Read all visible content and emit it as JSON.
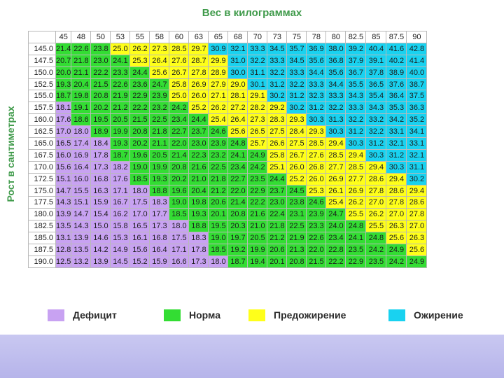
{
  "titles": {
    "top": "Вес в килограммах",
    "side": "Рост в сантиметрах"
  },
  "colors": {
    "deficit": "#c8a2f2",
    "norm": "#33dd33",
    "pre": "#ffff1a",
    "obese": "#19d2f0"
  },
  "legend": [
    {
      "label": "Дефицит",
      "color": "#c8a2f2"
    },
    {
      "label": "Норма",
      "color": "#33dd33"
    },
    {
      "label": "Предожирение",
      "color": "#ffff1a"
    },
    {
      "label": "Ожирение",
      "color": "#19d2f0"
    }
  ],
  "chart_data": {
    "type": "heatmap",
    "title": "Вес в килограммах",
    "xlabel": "Вес в килограммах",
    "ylabel": "Рост в сантиметрах",
    "x": [
      "45",
      "48",
      "50",
      "53",
      "55",
      "58",
      "60",
      "63",
      "65",
      "68",
      "70",
      "73",
      "75",
      "78",
      "80",
      "82.5",
      "85",
      "87.5",
      "90"
    ],
    "y": [
      "145.0",
      "147.5",
      "150.0",
      "152.5",
      "155.0",
      "157.5",
      "160.0",
      "162.5",
      "165.0",
      "167.5",
      "170.0",
      "172.5",
      "175.0",
      "177.5",
      "180.0",
      "182.5",
      "185.0",
      "187.5",
      "190.0"
    ],
    "values": [
      [
        "21.4",
        "22.6",
        "23.8",
        "25.0",
        "26.2",
        "27.3",
        "28.5",
        "29.7",
        "30.9",
        "32.1",
        "33.3",
        "34.5",
        "35.7",
        "36.9",
        "38.0",
        "39.2",
        "40.4",
        "41.6",
        "42.8"
      ],
      [
        "20.7",
        "21.8",
        "23.0",
        "24.1",
        "25.3",
        "26.4",
        "27.6",
        "28.7",
        "29.9",
        "31.0",
        "32.2",
        "33.3",
        "34.5",
        "35.6",
        "36.8",
        "37.9",
        "39.1",
        "40.2",
        "41.4"
      ],
      [
        "20.0",
        "21.1",
        "22.2",
        "23.3",
        "24.4",
        "25.6",
        "26.7",
        "27.8",
        "28.9",
        "30.0",
        "31.1",
        "32.2",
        "33.3",
        "34.4",
        "35.6",
        "36.7",
        "37.8",
        "38.9",
        "40.0"
      ],
      [
        "19.3",
        "20.4",
        "21.5",
        "22.6",
        "23.6",
        "24.7",
        "25.8",
        "26.9",
        "27.9",
        "29.0",
        "30.1",
        "31.2",
        "32.2",
        "33.3",
        "34.4",
        "35.5",
        "36.5",
        "37.6",
        "38.7"
      ],
      [
        "18.7",
        "19.8",
        "20.8",
        "21.9",
        "22.9",
        "23.9",
        "25.0",
        "26.0",
        "27.1",
        "28.1",
        "29.1",
        "30.2",
        "31.2",
        "32.3",
        "33.3",
        "34.3",
        "35.4",
        "36.4",
        "37.5"
      ],
      [
        "18.1",
        "19.1",
        "20.2",
        "21.2",
        "22.2",
        "23.2",
        "24.2",
        "25.2",
        "26.2",
        "27.2",
        "28.2",
        "29.2",
        "30.2",
        "31.2",
        "32.2",
        "33.3",
        "34.3",
        "35.3",
        "36.3"
      ],
      [
        "17.6",
        "18.6",
        "19.5",
        "20.5",
        "21.5",
        "22.5",
        "23.4",
        "24.4",
        "25.4",
        "26.4",
        "27.3",
        "28.3",
        "29.3",
        "30.3",
        "31.3",
        "32.2",
        "33.2",
        "34.2",
        "35.2"
      ],
      [
        "17.0",
        "18.0",
        "18.9",
        "19.9",
        "20.8",
        "21.8",
        "22.7",
        "23.7",
        "24.6",
        "25.6",
        "26.5",
        "27.5",
        "28.4",
        "29.3",
        "30.3",
        "31.2",
        "32.2",
        "33.1",
        "34.1"
      ],
      [
        "16.5",
        "17.4",
        "18.4",
        "19.3",
        "20.2",
        "21.1",
        "22.0",
        "23.0",
        "23.9",
        "24.8",
        "25.7",
        "26.6",
        "27.5",
        "28.5",
        "29.4",
        "30.3",
        "31.2",
        "32.1",
        "33.1"
      ],
      [
        "16.0",
        "16.9",
        "17.8",
        "18.7",
        "19.6",
        "20.5",
        "21.4",
        "22.3",
        "23.2",
        "24.1",
        "24.9",
        "25.8",
        "26.7",
        "27.6",
        "28.5",
        "29.4",
        "30.3",
        "31.2",
        "32.1"
      ],
      [
        "15.6",
        "16.4",
        "17.3",
        "18.2",
        "19.0",
        "19.9",
        "20.8",
        "21.6",
        "22.5",
        "23.4",
        "24.2",
        "25.1",
        "26.0",
        "26.8",
        "27.7",
        "28.5",
        "29.4",
        "30.3",
        "31.1"
      ],
      [
        "15.1",
        "16.0",
        "16.8",
        "17.6",
        "18.5",
        "19.3",
        "20.2",
        "21.0",
        "21.8",
        "22.7",
        "23.5",
        "24.4",
        "25.2",
        "26.0",
        "26.9",
        "27.7",
        "28.6",
        "29.4",
        "30.2"
      ],
      [
        "14.7",
        "15.5",
        "16.3",
        "17.1",
        "18.0",
        "18.8",
        "19.6",
        "20.4",
        "21.2",
        "22.0",
        "22.9",
        "23.7",
        "24.5",
        "25.3",
        "26.1",
        "26.9",
        "27.8",
        "28.6",
        "29.4"
      ],
      [
        "14.3",
        "15.1",
        "15.9",
        "16.7",
        "17.5",
        "18.3",
        "19.0",
        "19.8",
        "20.6",
        "21.4",
        "22.2",
        "23.0",
        "23.8",
        "24.6",
        "25.4",
        "26.2",
        "27.0",
        "27.8",
        "28.6"
      ],
      [
        "13.9",
        "14.7",
        "15.4",
        "16.2",
        "17.0",
        "17.7",
        "18.5",
        "19.3",
        "20.1",
        "20.8",
        "21.6",
        "22.4",
        "23.1",
        "23.9",
        "24.7",
        "25.5",
        "26.2",
        "27.0",
        "27.8"
      ],
      [
        "13.5",
        "14.3",
        "15.0",
        "15.8",
        "16.5",
        "17.3",
        "18.0",
        "18.8",
        "19.5",
        "20.3",
        "21.0",
        "21.8",
        "22.5",
        "23.3",
        "24.0",
        "24.8",
        "25.5",
        "26.3",
        "27.0"
      ],
      [
        "13.1",
        "13.9",
        "14.6",
        "15.3",
        "16.1",
        "16.8",
        "17.5",
        "18.3",
        "19.0",
        "19.7",
        "20.5",
        "21.2",
        "21.9",
        "22.6",
        "23.4",
        "24.1",
        "24.8",
        "25.6",
        "26.3"
      ],
      [
        "12.8",
        "13.5",
        "14.2",
        "14.9",
        "15.6",
        "16.4",
        "17.1",
        "17.8",
        "18.5",
        "19.2",
        "19.9",
        "20.6",
        "21.3",
        "22.0",
        "22.8",
        "23.5",
        "24.2",
        "24.9",
        "25.6"
      ],
      [
        "12.5",
        "13.2",
        "13.9",
        "14.5",
        "15.2",
        "15.9",
        "16.6",
        "17.3",
        "18.0",
        "18.7",
        "19.4",
        "20.1",
        "20.8",
        "21.5",
        "22.2",
        "22.9",
        "23.5",
        "24.2",
        "24.9"
      ]
    ],
    "legend": [
      "Дефицит",
      "Норма",
      "Предожирение",
      "Ожирение"
    ],
    "legend_placement": "bottom"
  }
}
